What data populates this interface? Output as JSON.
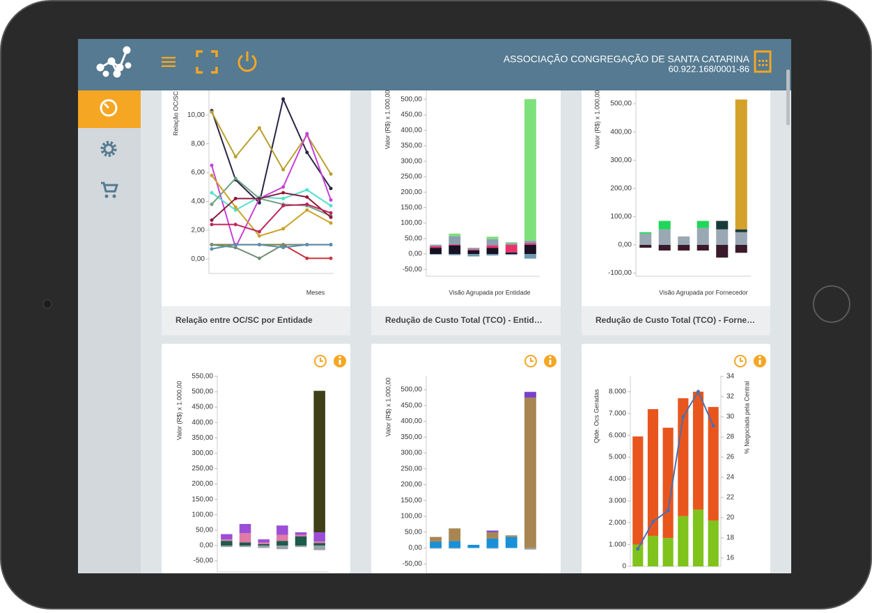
{
  "header": {
    "company": "ASSOCIAÇÃO CONGREGAÇÃO DE SANTA CATARINA",
    "cnpj": "60.922.168/0001-86"
  },
  "cards": [
    {
      "footer": "Relação entre OC/SC por Entidade"
    },
    {
      "footer": "Redução de Custo Total (TCO) - Entid…"
    },
    {
      "footer": "Redução de Custo Total (TCO) - Forne…"
    }
  ],
  "chart_data": [
    {
      "type": "line",
      "y_label": "Relação OC/SC",
      "x_label": "Meses",
      "categories": [
        null,
        null,
        null,
        null,
        null,
        null
      ],
      "ylim": [
        -1.0,
        11.7
      ],
      "yticks": [
        {
          "value": 0,
          "label": "0,00"
        },
        {
          "value": 2,
          "label": "2,00"
        },
        {
          "value": 4,
          "label": "4,00"
        },
        {
          "value": 6,
          "label": "6,00"
        },
        {
          "value": 8,
          "label": "8,00"
        },
        {
          "value": 10,
          "label": "10,00"
        }
      ],
      "series": [
        {
          "color": "#2b2346",
          "values": [
            10.3,
            5.5,
            3.9,
            11.1,
            7.4,
            4.9
          ]
        },
        {
          "color": "#b8a02e",
          "values": [
            10.2,
            7.1,
            9.1,
            6.2,
            8.6,
            5.9
          ]
        },
        {
          "color": "#c640d6",
          "values": [
            6.5,
            0.8,
            4.2,
            5.0,
            8.7,
            4.1
          ]
        },
        {
          "color": "#4ee0d0",
          "values": [
            4.6,
            3.4,
            4.3,
            4.2,
            4.8,
            3.7
          ]
        },
        {
          "color": "#6e9e82",
          "values": [
            3.8,
            5.6,
            4.2,
            3.8,
            3.7,
            3.0
          ]
        },
        {
          "color": "#c9a227",
          "values": [
            5.8,
            3.6,
            1.6,
            2.1,
            3.4,
            2.5
          ]
        },
        {
          "color": "#8b1a3c",
          "values": [
            2.7,
            4.2,
            4.2,
            4.6,
            4.3,
            2.9
          ]
        },
        {
          "color": "#c0245a",
          "values": [
            2.4,
            2.4,
            1.9,
            3.7,
            3.8,
            3.2
          ]
        },
        {
          "color": "#c8343f",
          "values": [
            1.0,
            1.0,
            1.0,
            1.0,
            0.05,
            0.05
          ]
        },
        {
          "color": "#7a8a3a",
          "values": [
            1.0,
            1.0,
            1.0,
            1.0,
            1.0,
            1.0
          ]
        },
        {
          "color": "#6f8f75",
          "values": [
            1.0,
            0.8,
            0.05,
            1.0,
            1.0,
            1.0
          ]
        },
        {
          "color": "#5b8db0",
          "values": [
            0.7,
            1.0,
            1.0,
            0.8,
            1.0,
            1.0
          ]
        }
      ]
    },
    {
      "type": "stacked_bar",
      "y_label": "Valor (R$) x 1.000,00",
      "x_label": "Visão Agrupada por Entidade",
      "categories": [
        null,
        null,
        null,
        null,
        null,
        null
      ],
      "ylim": [
        -72,
        529
      ],
      "yticks": [
        {
          "value": -50,
          "label": "-50,00"
        },
        {
          "value": 0,
          "label": "0,00"
        },
        {
          "value": 50,
          "label": "50,00"
        },
        {
          "value": 100,
          "label": "100,00"
        },
        {
          "value": 150,
          "label": "150,00"
        },
        {
          "value": 200,
          "label": "200,00"
        },
        {
          "value": 250,
          "label": "250,00"
        },
        {
          "value": 300,
          "label": "300,00"
        },
        {
          "value": 350,
          "label": "350,00"
        },
        {
          "value": 400,
          "label": "400,00"
        },
        {
          "value": 450,
          "label": "450,00"
        },
        {
          "value": 500,
          "label": "500,00"
        }
      ],
      "series": [
        {
          "color": "#1a1024",
          "values": [
            20,
            28,
            12,
            20,
            5,
            30
          ]
        },
        {
          "color": "#e8336a",
          "values": [
            5,
            3,
            3,
            8,
            25,
            5
          ]
        },
        {
          "color": "#8aa0b0",
          "values": [
            5,
            27,
            5,
            20,
            5,
            8
          ]
        },
        {
          "color": "#7ee07a",
          "values": [
            0,
            8,
            0,
            8,
            3,
            458
          ]
        },
        {
          "color": "#6e9ab0",
          "values": [
            -2,
            -4,
            -8,
            -5,
            -3,
            -15
          ]
        }
      ]
    },
    {
      "type": "stacked_bar",
      "y_label": "Valor (R$) x 1.000,00",
      "x_label": "Visão Agrupada por Fornecedor",
      "categories": [
        null,
        null,
        null,
        null,
        null,
        null
      ],
      "ylim": [
        -111,
        547
      ],
      "yticks": [
        {
          "value": -100,
          "label": "-100,00"
        },
        {
          "value": 0,
          "label": "0,00"
        },
        {
          "value": 100,
          "label": "100,00"
        },
        {
          "value": 200,
          "label": "200,00"
        },
        {
          "value": 300,
          "label": "300,00"
        },
        {
          "value": 400,
          "label": "400,00"
        },
        {
          "value": 500,
          "label": "500,00"
        }
      ],
      "series": [
        {
          "color": "#9aa8b4",
          "values": [
            40,
            55,
            30,
            60,
            55,
            45
          ]
        },
        {
          "color": "#1fd65a",
          "values": [
            5,
            30,
            0,
            25,
            0,
            0
          ]
        },
        {
          "color": "#183a3a",
          "values": [
            0,
            0,
            0,
            0,
            30,
            10
          ]
        },
        {
          "color": "#d4a22a",
          "values": [
            0,
            0,
            0,
            0,
            0,
            460
          ]
        },
        {
          "color": "#3a1a2a",
          "values": [
            -10,
            -20,
            -20,
            -20,
            -45,
            -28
          ]
        }
      ]
    },
    {
      "type": "stacked_bar",
      "y_label": "Valor (R$) x 1.000,00",
      "categories": [
        null,
        null,
        null,
        null,
        null,
        null
      ],
      "ylim": [
        -86,
        552
      ],
      "yticks": [
        {
          "value": -50,
          "label": "-50,00"
        },
        {
          "value": 0,
          "label": "0,00"
        },
        {
          "value": 50,
          "label": "50,00"
        },
        {
          "value": 100,
          "label": "100,00"
        },
        {
          "value": 150,
          "label": "150,00"
        },
        {
          "value": 200,
          "label": "200,00"
        },
        {
          "value": 250,
          "label": "250,00"
        },
        {
          "value": 300,
          "label": "300,00"
        },
        {
          "value": 350,
          "label": "350,00"
        },
        {
          "value": 400,
          "label": "400,00"
        },
        {
          "value": 450,
          "label": "450,00"
        },
        {
          "value": 500,
          "label": "500,00"
        },
        {
          "value": 550,
          "label": "550,00"
        }
      ],
      "series": [
        {
          "color": "#1f5a4a",
          "values": [
            15,
            10,
            5,
            15,
            30,
            8
          ]
        },
        {
          "color": "#e07aa6",
          "values": [
            5,
            30,
            5,
            20,
            5,
            5
          ]
        },
        {
          "color": "#9a4fd6",
          "values": [
            17,
            30,
            10,
            30,
            8,
            30
          ]
        },
        {
          "color": "#3f3f18",
          "values": [
            0,
            0,
            0,
            0,
            0,
            460
          ]
        },
        {
          "color": "#9aa0a8",
          "values": [
            -5,
            -5,
            -8,
            -12,
            -5,
            -15
          ]
        }
      ]
    },
    {
      "type": "stacked_bar",
      "y_label": "Valor (R$) x 1.000,00",
      "categories": [
        null,
        null,
        null,
        null,
        null,
        null
      ],
      "ylim": [
        -80,
        544
      ],
      "yticks": [
        {
          "value": -50,
          "label": "-50,00"
        },
        {
          "value": 0,
          "label": "0,00"
        },
        {
          "value": 50,
          "label": "50,00"
        },
        {
          "value": 100,
          "label": "100,00"
        },
        {
          "value": 150,
          "label": "150,00"
        },
        {
          "value": 200,
          "label": "200,00"
        },
        {
          "value": 250,
          "label": "250,00"
        },
        {
          "value": 300,
          "label": "300,00"
        },
        {
          "value": 350,
          "label": "350,00"
        },
        {
          "value": 400,
          "label": "400,00"
        },
        {
          "value": 450,
          "label": "450,00"
        },
        {
          "value": 500,
          "label": "500,00"
        }
      ],
      "series": [
        {
          "color": "#1a90d8",
          "values": [
            20,
            22,
            10,
            30,
            35,
            0
          ]
        },
        {
          "color": "#a88652",
          "values": [
            15,
            40,
            0,
            20,
            5,
            475
          ]
        },
        {
          "color": "#7a40c8",
          "values": [
            0,
            0,
            0,
            5,
            0,
            18
          ]
        },
        {
          "color": "#a0a4aa",
          "values": [
            -2,
            -2,
            0,
            -2,
            0,
            -5
          ]
        }
      ]
    },
    {
      "type": "combo",
      "y_label": "Qtde. Ocs Geradas",
      "y2_label": "% Negociada pela Central",
      "categories": [
        null,
        null,
        null,
        null,
        null,
        null
      ],
      "ylim": [
        0,
        8730
      ],
      "y2lim": [
        15.17,
        34.07
      ],
      "yticks": [
        0,
        {
          "value": 1000,
          "label": "1.000"
        },
        {
          "value": 2000,
          "label": "2.000"
        },
        {
          "value": 3000,
          "label": "3.000"
        },
        {
          "value": 4000,
          "label": "4.000"
        },
        {
          "value": 5000,
          "label": "5.000"
        },
        {
          "value": 6000,
          "label": "6.000"
        },
        {
          "value": 7000,
          "label": "7.000"
        },
        {
          "value": 8000,
          "label": "8.000"
        }
      ],
      "y2ticks": [
        16,
        18,
        20,
        22,
        24,
        26,
        28,
        30,
        32,
        34
      ],
      "series": [
        {
          "color": "#7fc31c",
          "values": [
            1000,
            1400,
            1300,
            2300,
            2600,
            2100
          ]
        },
        {
          "color": "#e8561e",
          "values": [
            4950,
            5800,
            5050,
            5400,
            5400,
            5200
          ]
        },
        {
          "color": "#4a6fb0",
          "axis": "y2",
          "values": [
            16.9,
            19.6,
            20.7,
            30,
            32.5,
            29.1
          ]
        }
      ]
    }
  ]
}
